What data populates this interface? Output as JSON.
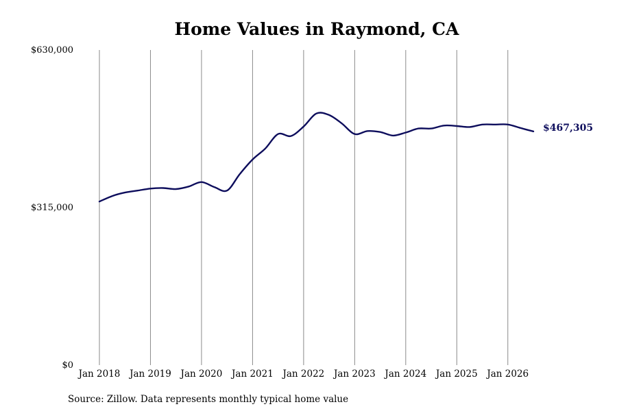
{
  "chart_data": {
    "type": "line",
    "title": "Home Values in Raymond, CA",
    "xlabel": "",
    "ylabel": "",
    "x_tick_labels": [
      "Jan 2018",
      "Jan 2019",
      "Jan 2020",
      "Jan 2021",
      "Jan 2022",
      "Jan 2023",
      "Jan 2024",
      "Jan 2025",
      "Jan 2026"
    ],
    "y_tick_labels": [
      "$630,000",
      "$315,000",
      "$0"
    ],
    "ylim": [
      0,
      630000
    ],
    "xlim": [
      "2018-01",
      "2026-07"
    ],
    "grid": "vertical",
    "line_color": "#0d0d5c",
    "end_label": "$467,305",
    "series": [
      {
        "x": [
          "2018-01",
          "2018-04",
          "2018-07",
          "2018-10",
          "2019-01",
          "2019-04",
          "2019-07",
          "2019-10",
          "2020-01",
          "2020-04",
          "2020-07",
          "2020-10",
          "2021-01",
          "2021-04",
          "2021-07",
          "2021-10",
          "2022-01",
          "2022-04",
          "2022-07",
          "2022-10",
          "2023-01",
          "2023-04",
          "2023-07",
          "2023-10",
          "2024-01",
          "2024-04",
          "2024-07",
          "2024-10",
          "2025-01",
          "2025-04",
          "2025-07",
          "2025-10",
          "2026-01",
          "2026-04",
          "2026-07"
        ],
        "values": [
          327000,
          338000,
          345000,
          349000,
          353000,
          354000,
          352000,
          357000,
          366000,
          356000,
          349000,
          382000,
          411000,
          433000,
          462000,
          458000,
          477000,
          503000,
          500000,
          483000,
          462000,
          468000,
          466000,
          459000,
          465000,
          473000,
          473000,
          479000,
          478000,
          476000,
          481000,
          481000,
          481000,
          474000,
          467305
        ]
      }
    ]
  },
  "source": "Source: Zillow. Data represents monthly typical home value"
}
